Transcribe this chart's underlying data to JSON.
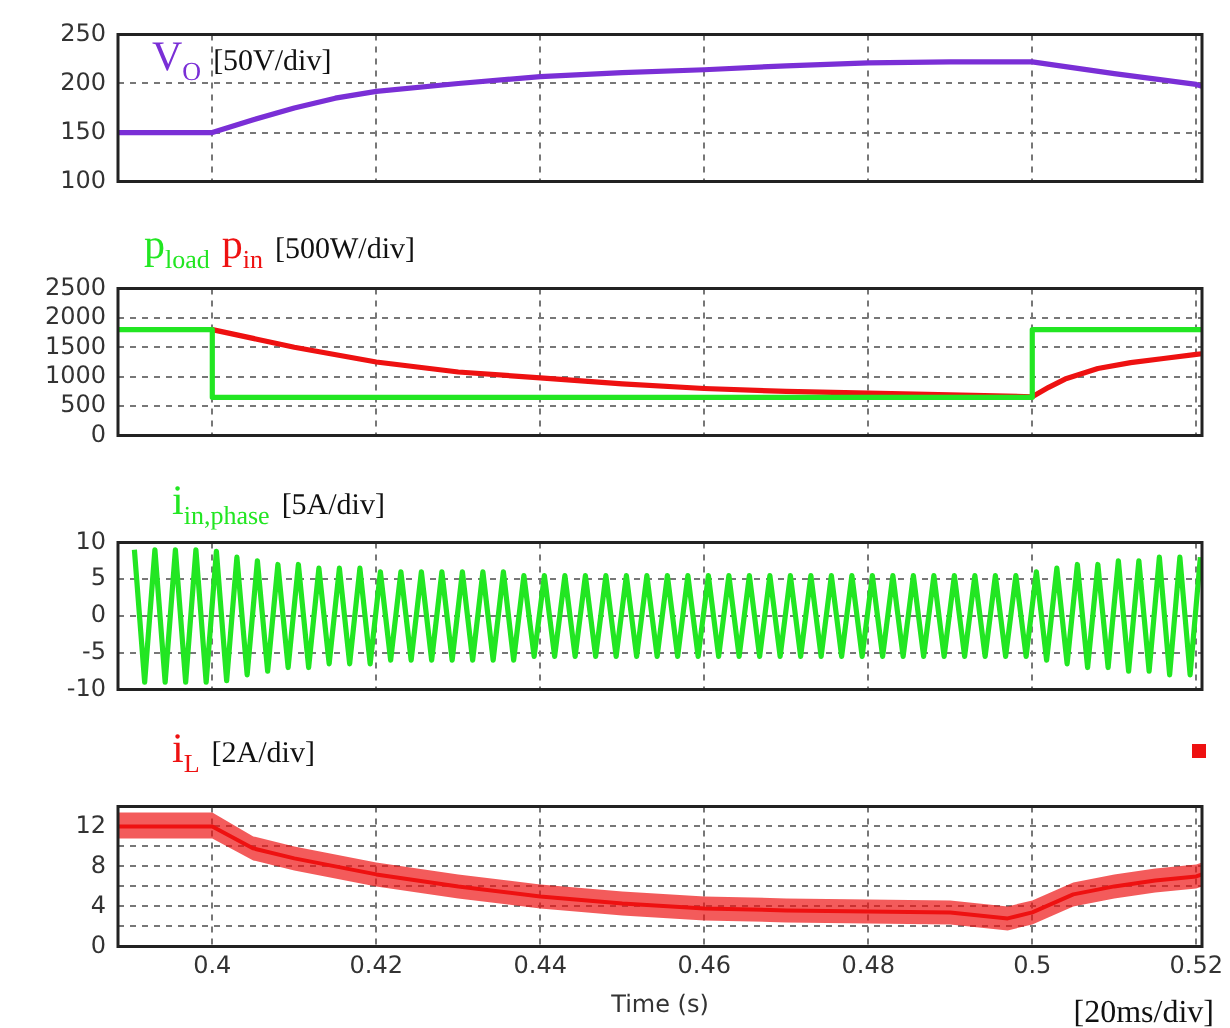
{
  "chart_data": [
    {
      "type": "line",
      "xlim": [
        0.3885,
        0.5207
      ],
      "xticks": [
        0.4,
        0.42,
        0.44,
        0.46,
        0.48,
        0.5,
        0.52
      ],
      "ylim": [
        100,
        250
      ],
      "yticks": [
        100,
        150,
        200,
        250
      ],
      "tick_labels": "y",
      "grid": true,
      "legend": false,
      "marker": "none",
      "line_style": "solid",
      "annotations": [
        "[50V/div]"
      ],
      "series": [
        {
          "name": "V$_{O}$",
          "color": "#7a2fd6",
          "x": [
            0.3885,
            0.4,
            0.405,
            0.41,
            0.415,
            0.42,
            0.43,
            0.44,
            0.45,
            0.46,
            0.47,
            0.48,
            0.49,
            0.5,
            0.51,
            0.52,
            0.5207
          ],
          "values": [
            150,
            150,
            163,
            175,
            185,
            192,
            200,
            207,
            211,
            214,
            218,
            221,
            222,
            222,
            210,
            199,
            197
          ]
        }
      ]
    },
    {
      "type": "line",
      "xlim": [
        0.3885,
        0.5207
      ],
      "xticks": [
        0.4,
        0.42,
        0.44,
        0.46,
        0.48,
        0.5,
        0.52
      ],
      "ylim": [
        0,
        2500
      ],
      "yticks": [
        0,
        500,
        1000,
        1500,
        2000,
        2500
      ],
      "tick_labels": "y",
      "grid": true,
      "legend": false,
      "marker": "none",
      "line_style": "solid",
      "annotations": [
        "[500W/div]"
      ],
      "series": [
        {
          "name": "p$_{load}$",
          "type": "step",
          "color": "#22e622",
          "x": [
            0.3885,
            0.4,
            0.5,
            0.5207
          ],
          "values": [
            1800,
            650,
            1800,
            1800
          ]
        },
        {
          "name": "p$_{in}$",
          "color": "#ee1111",
          "x": [
            0.4,
            0.41,
            0.42,
            0.43,
            0.44,
            0.45,
            0.46,
            0.47,
            0.48,
            0.49,
            0.5,
            0.502,
            0.504,
            0.508,
            0.512,
            0.516,
            0.52,
            0.5207
          ],
          "values": [
            1800,
            1500,
            1250,
            1080,
            980,
            880,
            800,
            750,
            720,
            690,
            660,
            820,
            960,
            1140,
            1240,
            1310,
            1380,
            1390
          ]
        }
      ]
    },
    {
      "type": "line",
      "xlim": [
        0.3885,
        0.5207
      ],
      "xticks": [
        0.4,
        0.42,
        0.44,
        0.46,
        0.48,
        0.5,
        0.52
      ],
      "ylim": [
        -10,
        10
      ],
      "yticks": [
        -10,
        -5,
        0,
        5,
        10
      ],
      "tick_labels": "y",
      "grid": true,
      "legend": false,
      "marker": "none",
      "line_style": "solid",
      "annotations": [
        "[5A/div]"
      ],
      "series": [
        {
          "name": "i$_{in,phase}$",
          "color": "#22e622",
          "x": [
            0.3905,
            0.39175,
            0.393,
            0.39425,
            0.3955,
            0.39675,
            0.398,
            0.39925,
            0.4005,
            0.40175,
            0.403,
            0.40425,
            0.4055,
            0.40675,
            0.408,
            0.40925,
            0.4105,
            0.41175,
            0.413,
            0.41425,
            0.4155,
            0.41675,
            0.418,
            0.41925,
            0.4205,
            0.42175,
            0.423,
            0.42425,
            0.4255,
            0.42675,
            0.428,
            0.42925,
            0.4305,
            0.43175,
            0.433,
            0.43425,
            0.4355,
            0.43675,
            0.438,
            0.43925,
            0.4405,
            0.44175,
            0.443,
            0.44425,
            0.4455,
            0.44675,
            0.448,
            0.44925,
            0.4505,
            0.45175,
            0.453,
            0.45425,
            0.4555,
            0.45675,
            0.458,
            0.45925,
            0.4605,
            0.46175,
            0.463,
            0.46425,
            0.4655,
            0.46675,
            0.468,
            0.46925,
            0.4705,
            0.47175,
            0.473,
            0.47425,
            0.4755,
            0.47675,
            0.478,
            0.47925,
            0.4805,
            0.48175,
            0.483,
            0.48425,
            0.4855,
            0.48675,
            0.488,
            0.48925,
            0.4905,
            0.49175,
            0.493,
            0.49425,
            0.4955,
            0.49675,
            0.498,
            0.49925,
            0.5005,
            0.50175,
            0.503,
            0.50425,
            0.5055,
            0.50675,
            0.508,
            0.50925,
            0.5105,
            0.51175,
            0.513,
            0.51425,
            0.5155,
            0.51675,
            0.518,
            0.51925,
            0.5205
          ],
          "values": [
            9,
            -9,
            9,
            -9,
            9,
            -9,
            9,
            -9,
            8.8,
            -8.8,
            8,
            -8,
            7.5,
            -7.5,
            7,
            -7,
            7,
            -7,
            6.5,
            -6.5,
            6.5,
            -6.5,
            6.5,
            -6.5,
            6,
            -6,
            6,
            -6,
            6,
            -6,
            6,
            -6,
            6,
            -6,
            6,
            -6,
            6,
            -6,
            5.5,
            -5.5,
            5.5,
            -5.5,
            5.5,
            -5.5,
            5.5,
            -5.5,
            5.5,
            -5.5,
            5.5,
            -5.5,
            5.5,
            -5.5,
            5.5,
            -5.5,
            5.5,
            -5.5,
            5.5,
            -5.5,
            5.5,
            -5.5,
            5.5,
            -5.5,
            5.5,
            -5.5,
            5.5,
            -5.5,
            5.5,
            -5.5,
            5.5,
            -5.5,
            5.5,
            -5.5,
            5.5,
            -5.5,
            5.5,
            -5.5,
            5.5,
            -5.5,
            5.5,
            -5.5,
            5.5,
            -5.5,
            5.5,
            -5.5,
            5.5,
            -5.5,
            5.5,
            -5.5,
            6,
            -6,
            6.5,
            -6.5,
            7,
            -7,
            7,
            -7,
            7.5,
            -7.5,
            7.5,
            -7.5,
            8,
            -8,
            8,
            -8,
            8
          ]
        }
      ]
    },
    {
      "type": "line",
      "xlabel": "Time (s)",
      "xlim": [
        0.3885,
        0.5207
      ],
      "xticks": [
        0.4,
        0.42,
        0.44,
        0.46,
        0.48,
        0.5,
        0.52
      ],
      "ylim": [
        0,
        14
      ],
      "yticks": [
        0,
        {
          "value": 2,
          "label": null
        },
        4,
        {
          "value": 6,
          "label": null
        },
        8,
        {
          "value": 10,
          "label": null
        },
        12
      ],
      "grid": true,
      "legend": false,
      "marker": "none",
      "line_style": "solid",
      "annotations": [
        "[2A/div]",
        "[20ms/div]"
      ],
      "series": [
        {
          "name": "i$_{L}$",
          "color": "#ee1111",
          "x": [
            0.3885,
            0.4,
            0.405,
            0.41,
            0.42,
            0.43,
            0.44,
            0.45,
            0.46,
            0.47,
            0.48,
            0.49,
            0.497,
            0.5,
            0.505,
            0.51,
            0.515,
            0.52,
            0.5207
          ],
          "values": [
            12,
            12,
            9.8,
            8.8,
            7.2,
            6,
            5,
            4.3,
            3.8,
            3.6,
            3.5,
            3.4,
            2.8,
            3.4,
            5.2,
            6,
            6.6,
            7,
            7.2
          ],
          "lower": [
            10.8,
            10.8,
            8.6,
            7.6,
            6,
            4.8,
            3.8,
            3.1,
            2.6,
            2.4,
            2.3,
            2.2,
            1.6,
            2.2,
            4,
            4.8,
            5.4,
            5.8,
            6
          ],
          "upper": [
            13.4,
            13.4,
            11,
            10,
            8.4,
            7.2,
            6.2,
            5.5,
            5,
            4.8,
            4.7,
            4.6,
            4,
            4.6,
            6.4,
            7.2,
            7.8,
            8.2,
            8.4
          ]
        }
      ]
    }
  ]
}
